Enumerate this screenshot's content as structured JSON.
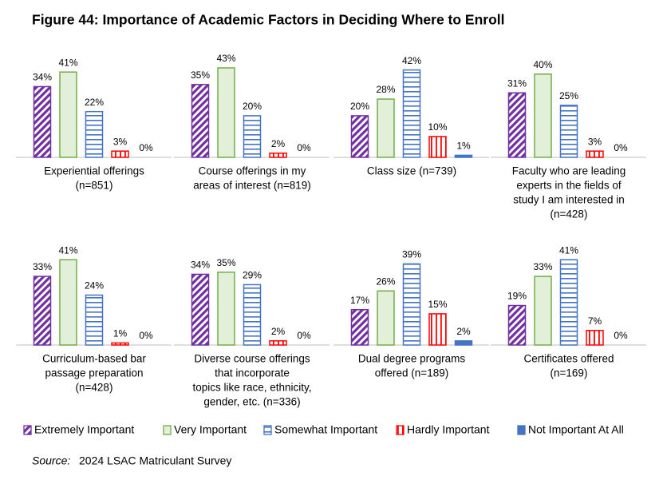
{
  "title": "Figure 44: Importance of Academic Factors in Deciding Where to Enroll",
  "source_label": "Source:",
  "source": "2024 LSAC Matriculant Survey",
  "legend": [
    {
      "name": "Extremely Important",
      "color": "#7030a0",
      "pattern": "diagonal"
    },
    {
      "name": "Very Important",
      "color": "#70ad47",
      "pattern": "none"
    },
    {
      "name": "Somewhat Important",
      "color": "#4472c4",
      "pattern": "horizontal"
    },
    {
      "name": "Hardly Important",
      "color": "#ff0000",
      "pattern": "vertical"
    },
    {
      "name": "Not Important At All",
      "color": "#4472c4",
      "pattern": "solid"
    }
  ],
  "chart_data": [
    {
      "type": "bar",
      "title": [
        "Experiential offerings",
        "(n=851)"
      ],
      "values": [
        34,
        41,
        22,
        3,
        0
      ],
      "value_labels": [
        "34%",
        "41%",
        "22%",
        "3%",
        "0%"
      ]
    },
    {
      "type": "bar",
      "title": [
        "Course offerings in my",
        "areas of interest (n=819)"
      ],
      "values": [
        35,
        43,
        20,
        2,
        0
      ],
      "value_labels": [
        "35%",
        "43%",
        "20%",
        "2%",
        "0%"
      ]
    },
    {
      "type": "bar",
      "title": [
        "Class size (n=739)"
      ],
      "values": [
        20,
        28,
        42,
        10,
        1
      ],
      "value_labels": [
        "20%",
        "28%",
        "42%",
        "10%",
        "1%"
      ]
    },
    {
      "type": "bar",
      "title": [
        "Faculty who are leading",
        "experts in the fields of",
        "study I am interested in",
        "(n=428)"
      ],
      "values": [
        31,
        40,
        25,
        3,
        0
      ],
      "value_labels": [
        "31%",
        "40%",
        "25%",
        "3%",
        "0%"
      ]
    },
    {
      "type": "bar",
      "title": [
        "Curriculum-based bar",
        "passage preparation",
        "(n=428)"
      ],
      "values": [
        33,
        41,
        24,
        1,
        0
      ],
      "value_labels": [
        "33%",
        "41%",
        "24%",
        "1%",
        "0%"
      ]
    },
    {
      "type": "bar",
      "title": [
        "Diverse course offerings",
        "that incorporate",
        "topics like race, ethnicity,",
        "gender, etc. (n=336)"
      ],
      "values": [
        34,
        35,
        29,
        2,
        0
      ],
      "value_labels": [
        "34%",
        "35%",
        "29%",
        "2%",
        "0%"
      ]
    },
    {
      "type": "bar",
      "title": [
        "Dual degree programs",
        "offered (n=189)"
      ],
      "values": [
        17,
        26,
        39,
        15,
        2
      ],
      "value_labels": [
        "17%",
        "26%",
        "39%",
        "15%",
        "2%"
      ]
    },
    {
      "type": "bar",
      "title": [
        "Certificates offered",
        "(n=169)"
      ],
      "values": [
        19,
        33,
        41,
        7,
        0
      ],
      "value_labels": [
        "19%",
        "33%",
        "41%",
        "7%",
        "0%"
      ]
    }
  ]
}
